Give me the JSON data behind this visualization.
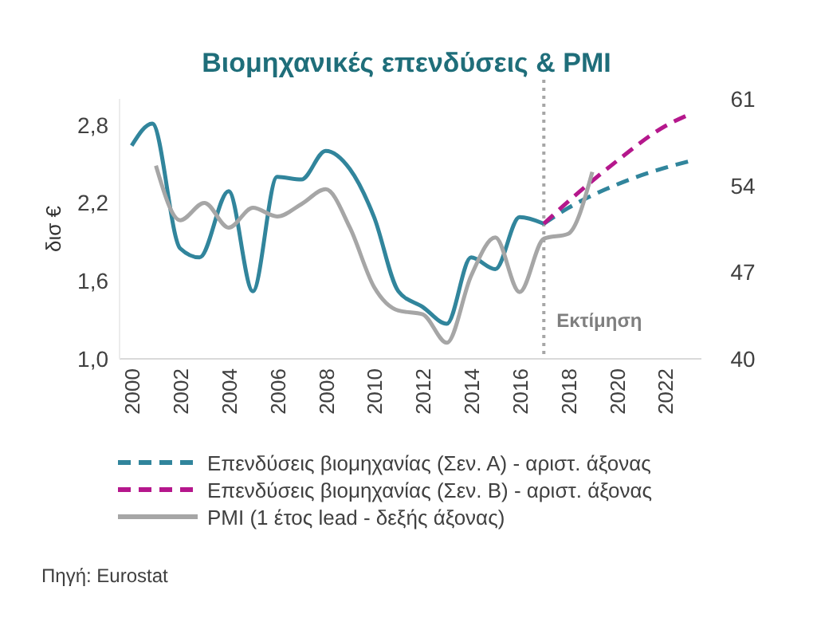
{
  "chart_data": {
    "type": "line",
    "title": "Βιομηχανικές επενδύσεις & PMI",
    "ylabel": "δισ €",
    "xlim": [
      1999.5,
      2023.5
    ],
    "xticks": [
      2000,
      2002,
      2004,
      2006,
      2008,
      2010,
      2012,
      2014,
      2016,
      2018,
      2020,
      2022
    ],
    "ylim": [
      1.0,
      3.0
    ],
    "yticks": [
      {
        "value": 1.0,
        "label": "1,0"
      },
      {
        "value": 1.6,
        "label": "1,6"
      },
      {
        "value": 2.2,
        "label": "2,2"
      },
      {
        "value": 2.8,
        "label": "2,8"
      }
    ],
    "y2lim": [
      40,
      61
    ],
    "y2ticks": [
      40,
      47,
      54,
      61
    ],
    "series": [
      {
        "color": "#31859c",
        "line_style": "solid",
        "x": [
          2000,
          2000.85,
          2002,
          2002.8,
          2004,
          2005,
          2006,
          2007,
          2008,
          2009,
          2010,
          2011,
          2012,
          2013,
          2014,
          2015,
          2016,
          2017
        ],
        "values": [
          2.64,
          2.81,
          1.85,
          1.78,
          2.29,
          1.52,
          2.4,
          2.38,
          2.6,
          2.46,
          2.09,
          1.52,
          1.4,
          1.27,
          1.78,
          1.69,
          2.09,
          2.04
        ]
      },
      {
        "name": "Επενδύσεις βιομηχανίας (Σεν. Α) - αριστ. άξονας",
        "color": "#31859c",
        "line_style": "dashed",
        "x": [
          2017,
          2018,
          2020,
          2022,
          2023
        ],
        "values": [
          2.04,
          2.16,
          2.34,
          2.47,
          2.52
        ]
      },
      {
        "name": "Επενδύσεις βιομηχανίας (Σεν. Β) - αριστ. άξονας",
        "color": "#b5178c",
        "line_style": "dashed",
        "x": [
          2017,
          2018,
          2020,
          2022,
          2023
        ],
        "values": [
          2.04,
          2.21,
          2.52,
          2.79,
          2.88
        ]
      },
      {
        "name": "PMI (1 έτος lead - δεξής άξονας)",
        "color": "#a6a6a6",
        "line_style": "solid",
        "axis": "y2",
        "x": [
          2001,
          2002,
          2003,
          2004,
          2005,
          2006,
          2007,
          2008,
          2009,
          2010,
          2011,
          2012,
          2013,
          2014,
          2015,
          2016,
          2017,
          2018,
          2019
        ],
        "values": [
          55.6,
          51.2,
          52.6,
          50.6,
          52.2,
          51.5,
          52.5,
          53.7,
          50.6,
          45.8,
          43.9,
          43.6,
          41.3,
          46.7,
          49.8,
          45.4,
          49.7,
          50.1,
          55.1
        ]
      }
    ],
    "ref_lines": [
      {
        "axis": "x",
        "value": 2017,
        "label": "Εκτίμηση",
        "color": "#a6a6a6",
        "line_style": "dotted"
      }
    ],
    "legend": "bottom",
    "grid": false,
    "annotations": [
      "Πηγή: Eurostat"
    ]
  }
}
